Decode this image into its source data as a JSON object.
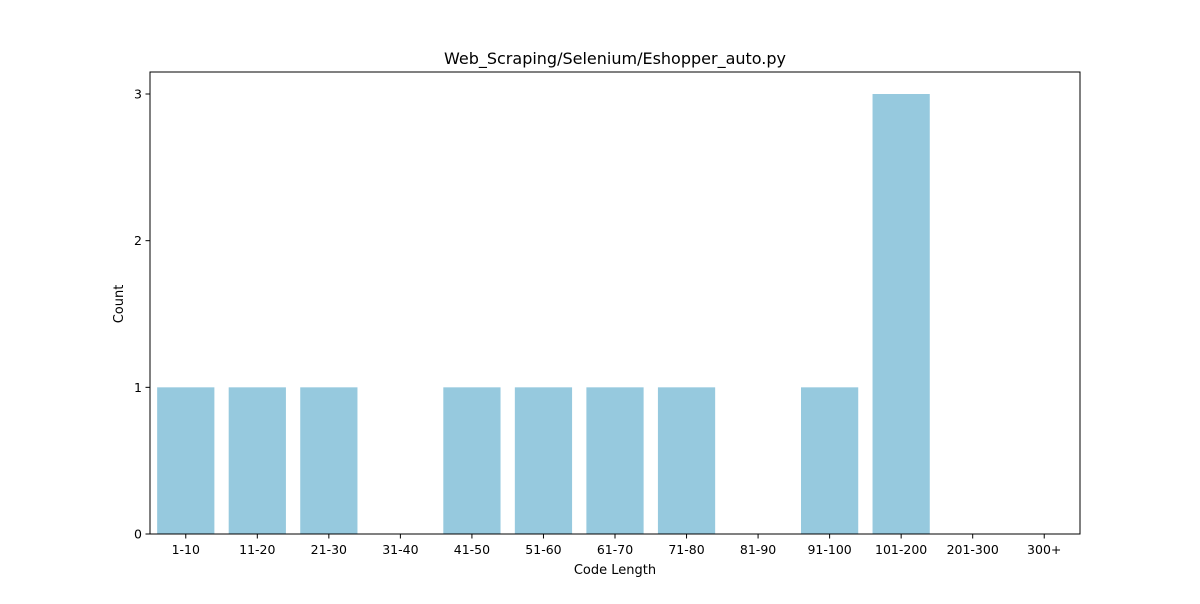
{
  "chart_data": {
    "type": "bar",
    "title": "Web_Scraping/Selenium/Eshopper_auto.py",
    "xlabel": "Code Length",
    "ylabel": "Count",
    "categories": [
      "1-10",
      "11-20",
      "21-30",
      "31-40",
      "41-50",
      "51-60",
      "61-70",
      "71-80",
      "81-90",
      "91-100",
      "101-200",
      "201-300",
      "300+"
    ],
    "values": [
      1,
      1,
      1,
      0,
      1,
      1,
      1,
      1,
      0,
      1,
      3,
      0,
      0
    ],
    "yticks": [
      0,
      1,
      2,
      3
    ],
    "ylim": [
      0,
      3.15
    ],
    "grid": false,
    "legend": "none",
    "bar_color": "#96c9de"
  }
}
